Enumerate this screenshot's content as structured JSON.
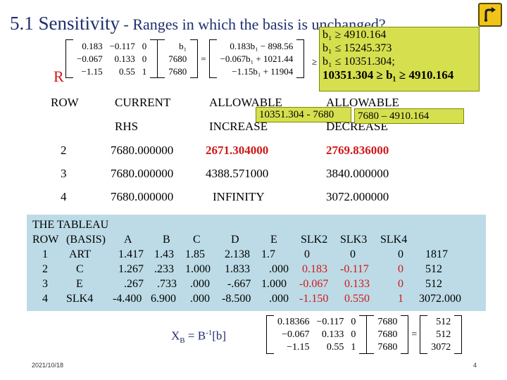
{
  "title": {
    "main": "5.1 Sensitivity",
    "sub": " - Ranges in which the basis is unchanged?"
  },
  "home_icon": "home-return-icon",
  "top_matrix": {
    "rows": [
      [
        "0.183",
        "−0.117",
        "0"
      ],
      [
        "−0.067",
        "0.133",
        "0"
      ],
      [
        "−1.15",
        "0.55",
        "1"
      ]
    ],
    "vector": [
      "b₁",
      "7680",
      "7680"
    ],
    "equals": "=",
    "result": [
      "0.183b₁ − 898.56",
      "−0.067b₁ + 1021.44",
      "−1.15b₁ + 11904"
    ],
    "geq": "≥ 0"
  },
  "green_box": {
    "line1": "b₁ ≥ 4910.164",
    "line2": "b₁ ≤ 15245.373",
    "line3": "b₁ ≤ 10351.304;",
    "line4": "10351.304 ≥ b₁ ≥ 4910.164"
  },
  "r_letter": "R",
  "headers": {
    "row": "ROW",
    "current": "CURRENT",
    "rhs": "RHS",
    "allow1": "ALLOWABLE",
    "increase": "INCREASE",
    "allow2": "ALLOWABLE",
    "decrease": "DECREASE"
  },
  "callouts": {
    "inc": "10351.304 - 7680",
    "dec": "7680 – 4910.164"
  },
  "ranging_rows": [
    {
      "row": "2",
      "rhs": "7680.000000",
      "inc": "2671.304000",
      "dec": "2769.836000"
    },
    {
      "row": "3",
      "rhs": "7680.000000",
      "inc": "4388.571000",
      "dec": "3840.000000"
    },
    {
      "row": "4",
      "rhs": "7680.000000",
      "inc": "INFINITY",
      "dec": "3072.000000"
    }
  ],
  "tableau": {
    "title": "THE TABLEAU",
    "header": [
      "ROW",
      "(BASIS)",
      "A",
      "B",
      "C",
      "D",
      "E",
      "SLK2",
      "SLK3",
      "SLK4"
    ],
    "rows": [
      [
        "1",
        "ART",
        "1.417",
        "1.43",
        "1.85",
        "2.138",
        "1.7",
        "0",
        "0",
        "0",
        "1817"
      ],
      [
        "2",
        "C",
        "1.267",
        ".233",
        "1.000",
        "1.833",
        ".000",
        "0.183",
        "-0.117",
        "0",
        "512"
      ],
      [
        "3",
        "E",
        ".267",
        ".733",
        ".000",
        "-.667",
        "1.000",
        "-0.067",
        "0.133",
        "0",
        "512"
      ],
      [
        "4",
        "SLK4",
        "-4.400",
        "6.900",
        ".000",
        "-8.500",
        ".000",
        "-1.150",
        "0.550",
        "1",
        "3072.000"
      ]
    ]
  },
  "xb_formula": {
    "left": "X",
    "sub": "B",
    "mid": " = B",
    "sup": "-1",
    "right": "[b]"
  },
  "bottom_matrix": {
    "rows": [
      [
        "0.18366",
        "−0.117",
        "0"
      ],
      [
        "−0.067",
        "0.133",
        "0"
      ],
      [
        "−1.15",
        "0.55",
        "1"
      ]
    ],
    "vector": [
      "7680",
      "7680",
      "7680"
    ],
    "equals": "=",
    "result": [
      "512",
      "512",
      "3072"
    ]
  },
  "footer": {
    "date": "2021/10/18",
    "page": "4"
  },
  "colors": {
    "title": "#1f2f6e",
    "highlight": "#d01818",
    "green": "#d6e04f",
    "tableau_bg": "#bcdbe6",
    "home": "#f0c419"
  }
}
